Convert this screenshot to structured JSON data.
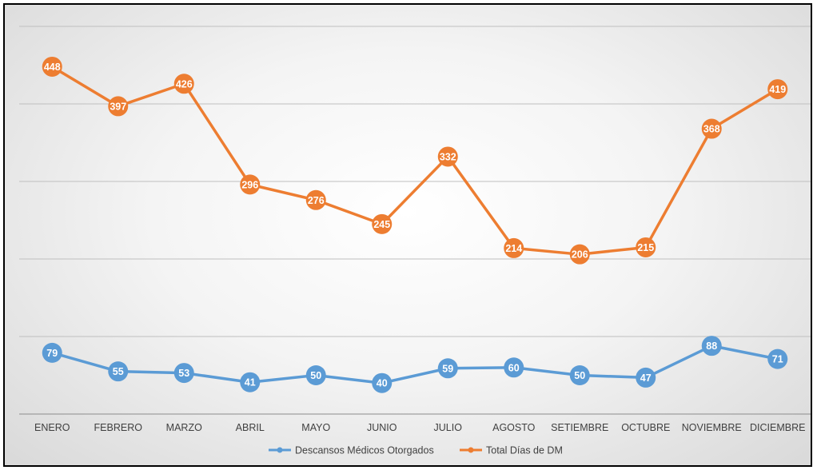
{
  "chart_data": {
    "type": "line",
    "title": "",
    "xlabel": "",
    "ylabel": "",
    "categories": [
      "ENERO",
      "FEBRERO",
      "MARZO",
      "ABRIL",
      "MAYO",
      "JUNIO",
      "JULIO",
      "AGOSTO",
      "SETIEMBRE",
      "OCTUBRE",
      "NOVIEMBRE",
      "DICIEMBRE"
    ],
    "ylim": [
      0,
      500
    ],
    "grid": true,
    "legend_position": "bottom",
    "data_labels": true,
    "series": [
      {
        "name": "Descansos Médicos Otorgados",
        "color": "#5b9bd5",
        "values": [
          79,
          55,
          53,
          41,
          50,
          40,
          59,
          60,
          50,
          47,
          88,
          71
        ]
      },
      {
        "name": "Total Días de DM",
        "color": "#ed7d31",
        "values": [
          448,
          397,
          426,
          296,
          276,
          245,
          332,
          214,
          206,
          215,
          368,
          419
        ]
      }
    ]
  }
}
